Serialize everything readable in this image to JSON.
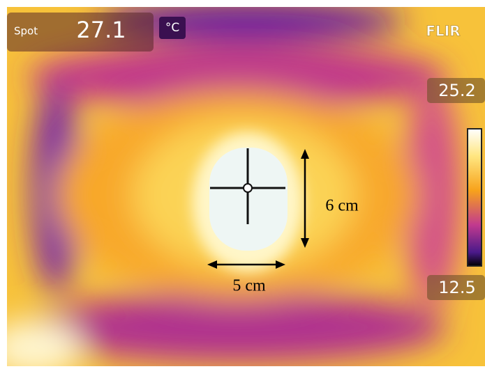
{
  "overlay": {
    "spot_label": "Spot",
    "spot_value": "27.1",
    "unit": "°C",
    "brand": "FLIR",
    "scale_max": "25.2",
    "scale_min": "12.5"
  },
  "annotations": {
    "height": "6 cm",
    "width": "5 cm"
  }
}
